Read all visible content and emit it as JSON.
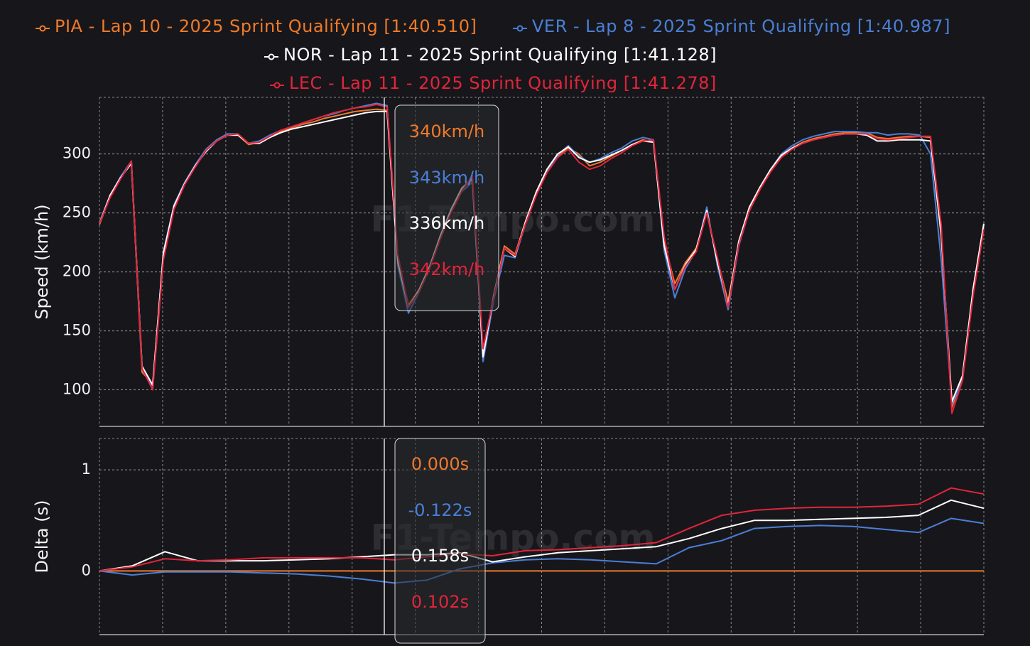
{
  "chart_data": [
    {
      "type": "line",
      "y_label": "Speed (km/h)",
      "watermark": "F1-Tempo.com",
      "ylim": [
        69,
        348
      ],
      "yticks": [
        100,
        150,
        200,
        250,
        300
      ],
      "grid": true,
      "series": [
        {
          "name": "PIA - Lap 10 - 2025 Sprint Qualifying [1:40.510]",
          "color": "#f07a2a",
          "values": [
            240,
            264,
            280,
            293,
            115,
            105,
            215,
            255,
            275,
            290,
            303,
            311,
            316,
            316,
            308,
            310,
            315,
            319,
            322,
            325,
            327,
            330,
            332,
            334,
            336,
            337,
            338,
            337,
            210,
            172,
            185,
            205,
            230,
            252,
            270,
            278,
            130,
            180,
            222,
            215,
            243,
            267,
            285,
            298,
            305,
            300,
            290,
            293,
            298,
            303,
            308,
            312,
            310,
            225,
            190,
            208,
            220,
            250,
            210,
            175,
            225,
            252,
            270,
            285,
            298,
            305,
            310,
            313,
            315,
            317,
            318,
            318,
            318,
            314,
            313,
            314,
            315,
            315,
            314,
            230,
            85,
            110,
            185,
            240
          ]
        },
        {
          "name": "VER - Lap 8 - 2025 Sprint Qualifying [1:40.987]",
          "color": "#4b7fd6",
          "values": [
            242,
            265,
            281,
            294,
            118,
            103,
            217,
            257,
            276,
            291,
            304,
            312,
            317,
            317,
            309,
            311,
            316,
            320,
            323,
            326,
            329,
            332,
            334,
            337,
            339,
            341,
            343,
            341,
            205,
            165,
            183,
            203,
            229,
            251,
            268,
            276,
            124,
            176,
            214,
            212,
            241,
            266,
            285,
            299,
            307,
            298,
            293,
            296,
            301,
            305,
            311,
            314,
            312,
            218,
            178,
            203,
            218,
            255,
            205,
            168,
            222,
            252,
            271,
            287,
            300,
            307,
            312,
            315,
            317,
            319,
            319,
            319,
            318,
            318,
            316,
            317,
            317,
            316,
            300,
            210,
            88,
            108,
            183,
            238
          ]
        },
        {
          "name": "NOR - Lap 11 - 2025 Sprint Qualifying [1:41.128]",
          "color": "#ffffff",
          "values": [
            241,
            265,
            280,
            292,
            120,
            104,
            216,
            256,
            275,
            290,
            302,
            311,
            316,
            316,
            309,
            309,
            314,
            318,
            321,
            323,
            325,
            327,
            329,
            331,
            333,
            335,
            336,
            336,
            208,
            170,
            185,
            205,
            231,
            253,
            271,
            279,
            128,
            180,
            220,
            213,
            243,
            268,
            287,
            300,
            306,
            297,
            293,
            295,
            299,
            303,
            308,
            311,
            310,
            222,
            185,
            206,
            219,
            252,
            208,
            172,
            226,
            255,
            272,
            287,
            299,
            305,
            309,
            312,
            314,
            316,
            317,
            317,
            316,
            311,
            311,
            312,
            312,
            312,
            311,
            232,
            90,
            112,
            186,
            241
          ]
        },
        {
          "name": "LEC - Lap 11 - 2025 Sprint Qualifying [1:41.278]",
          "color": "#e3243b",
          "values": [
            241,
            263,
            279,
            294,
            118,
            100,
            210,
            253,
            274,
            289,
            303,
            311,
            316,
            317,
            309,
            310,
            315,
            320,
            323,
            326,
            329,
            332,
            335,
            337,
            339,
            340,
            342,
            340,
            215,
            170,
            183,
            203,
            228,
            250,
            268,
            282,
            135,
            178,
            220,
            214,
            241,
            265,
            284,
            297,
            304,
            293,
            287,
            290,
            296,
            301,
            307,
            311,
            312,
            230,
            185,
            205,
            217,
            250,
            212,
            170,
            223,
            252,
            270,
            285,
            297,
            304,
            309,
            312,
            314,
            316,
            317,
            317,
            317,
            313,
            312,
            313,
            314,
            315,
            315,
            240,
            80,
            108,
            180,
            236
          ]
        }
      ],
      "tooltip": [
        "340km/h",
        "343km/h",
        "336km/h",
        "342km/h"
      ]
    },
    {
      "type": "line",
      "y_label": "Delta (s)",
      "watermark": "F1-Tempo.com",
      "ylim": [
        -0.63,
        1.31
      ],
      "yticks": [
        0,
        1
      ],
      "grid": true,
      "series": [
        {
          "color": "#f07a2a",
          "values": [
            0,
            0,
            0,
            0,
            0,
            0,
            0,
            0,
            0,
            0,
            0,
            0,
            0,
            0,
            0,
            0,
            0,
            0,
            0,
            0,
            0,
            0,
            0,
            0,
            0,
            0,
            0,
            0
          ]
        },
        {
          "color": "#4b7fd6",
          "values": [
            0,
            -0.04,
            -0.01,
            -0.01,
            -0.01,
            -0.02,
            -0.03,
            -0.05,
            -0.08,
            -0.12,
            -0.09,
            0.02,
            0.08,
            0.11,
            0.12,
            0.11,
            0.09,
            0.07,
            0.23,
            0.3,
            0.42,
            0.44,
            0.45,
            0.44,
            0.41,
            0.38,
            0.52,
            0.47
          ]
        },
        {
          "color": "#ffffff",
          "values": [
            0,
            0.05,
            0.19,
            0.1,
            0.1,
            0.1,
            0.11,
            0.12,
            0.14,
            0.16,
            0.16,
            0.18,
            0.09,
            0.14,
            0.18,
            0.2,
            0.22,
            0.24,
            0.32,
            0.42,
            0.5,
            0.5,
            0.51,
            0.52,
            0.53,
            0.55,
            0.7,
            0.62
          ]
        },
        {
          "color": "#e3243b",
          "values": [
            0,
            0.04,
            0.12,
            0.1,
            0.11,
            0.13,
            0.13,
            0.13,
            0.13,
            0.11,
            0.14,
            0.17,
            0.15,
            0.2,
            0.21,
            0.23,
            0.25,
            0.28,
            0.42,
            0.55,
            0.6,
            0.62,
            0.63,
            0.63,
            0.64,
            0.66,
            0.82,
            0.76
          ]
        }
      ],
      "tooltip": [
        "0.000s",
        "-0.122s",
        "0.158s",
        "0.102s"
      ]
    }
  ]
}
